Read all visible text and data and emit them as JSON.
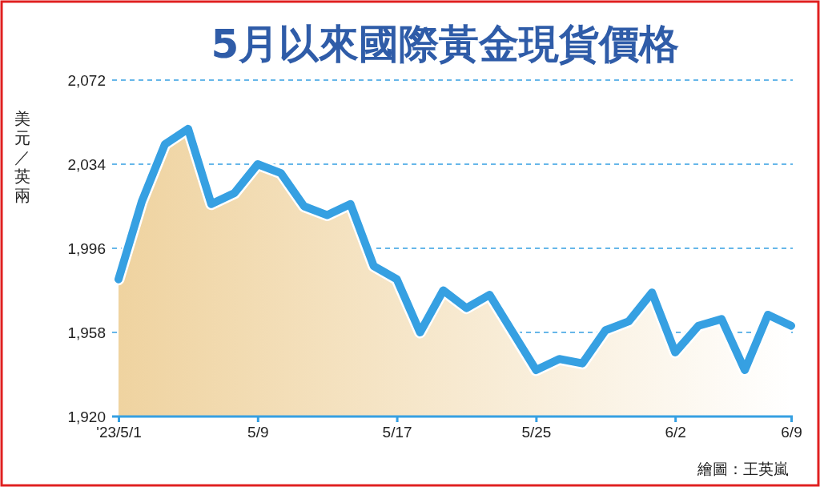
{
  "chart_data": {
    "type": "area",
    "title": "5月以來國際黃金現貨價格",
    "ylabel": "美元／英兩",
    "categories": [
      "'23/5/1",
      null,
      null,
      null,
      null,
      null,
      "5/9",
      null,
      null,
      null,
      null,
      null,
      "5/17",
      null,
      null,
      null,
      null,
      null,
      "5/25",
      null,
      null,
      null,
      null,
      null,
      "6/2",
      null,
      null,
      null,
      null,
      "6/9"
    ],
    "series": [
      {
        "color": "#36a0e2",
        "values": [
          1982,
          2017,
          2043,
          2050,
          2016,
          2021,
          2034,
          2030,
          2015,
          2011,
          2016,
          1988,
          1982,
          1958,
          1977,
          1969,
          1975,
          1958,
          1941,
          1946,
          1944,
          1959,
          1963,
          1976,
          1949,
          1961,
          1964,
          1941,
          1966,
          1961
        ]
      }
    ],
    "ylim": [
      1920,
      2072
    ],
    "yticks": [
      {
        "value": 1920,
        "label": "1,920"
      },
      {
        "value": 1958,
        "label": "1,958"
      },
      {
        "value": 1996,
        "label": "1,996"
      },
      {
        "value": 2034,
        "label": "2,034"
      },
      {
        "value": 2072,
        "label": "2,072"
      }
    ],
    "grid": "y",
    "annotations": [
      "繪圖：王英嵐"
    ]
  }
}
